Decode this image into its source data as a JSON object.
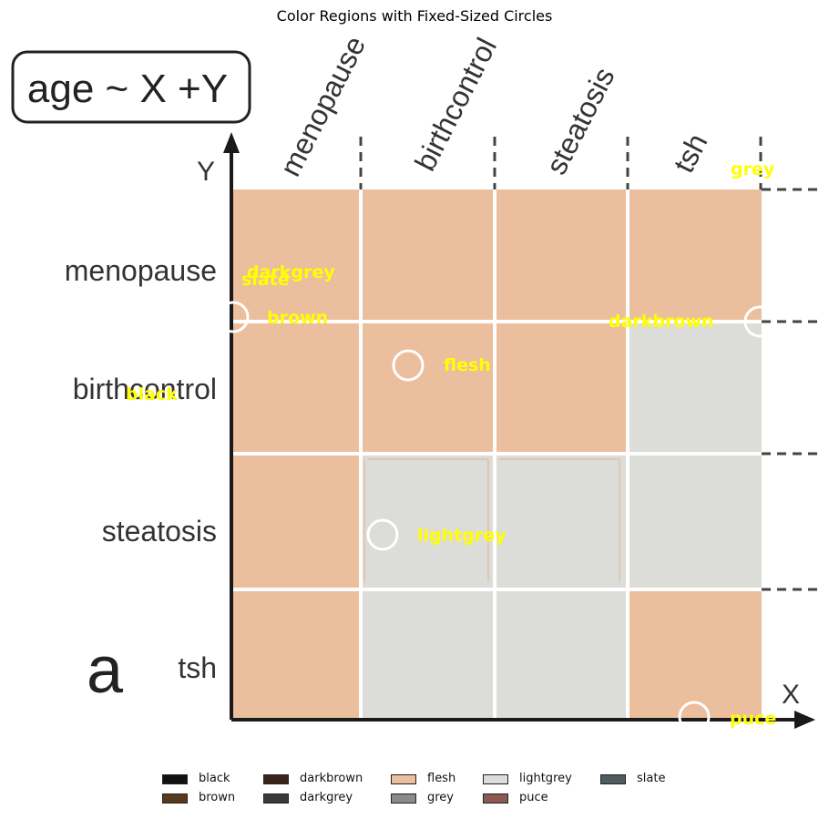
{
  "title": "Color Regions with Fixed-Sized Circles",
  "formula": "age ~ X +Y",
  "panel_label": "a",
  "axis": {
    "x_label": "X",
    "y_label": "Y"
  },
  "categories": [
    "menopause",
    "birthcontrol",
    "steatosis",
    "tsh"
  ],
  "grid_colors": {
    "flesh": "#ebbe9d",
    "lightgrey": "#dcdcd8",
    "line": "#1a1a1a",
    "label_yellow": "#ffff00"
  },
  "cell_fill": [
    [
      "flesh",
      "flesh",
      "flesh",
      "flesh"
    ],
    [
      "flesh",
      "flesh",
      "flesh",
      "lightgrey"
    ],
    [
      "flesh",
      "lightgrey",
      "lightgrey",
      "lightgrey"
    ],
    [
      "flesh",
      "lightgrey",
      "lightgrey",
      "flesh"
    ]
  ],
  "region_labels": [
    "grey",
    "darkgrey",
    "slate",
    "brown",
    "darkbrown",
    "flesh",
    "black",
    "lightgrey",
    "puce"
  ],
  "legend": [
    {
      "label": "black",
      "color": "#121212"
    },
    {
      "label": "brown",
      "color": "#5a3a1e"
    },
    {
      "label": "darkbrown",
      "color": "#3a2418"
    },
    {
      "label": "darkgrey",
      "color": "#3a3a3a"
    },
    {
      "label": "flesh",
      "color": "#ebbe9d"
    },
    {
      "label": "grey",
      "color": "#8a8a8a"
    },
    {
      "label": "lightgrey",
      "color": "#dcdcd8"
    },
    {
      "label": "puce",
      "color": "#8c5a55"
    },
    {
      "label": "slate",
      "color": "#4f5b5e"
    }
  ]
}
